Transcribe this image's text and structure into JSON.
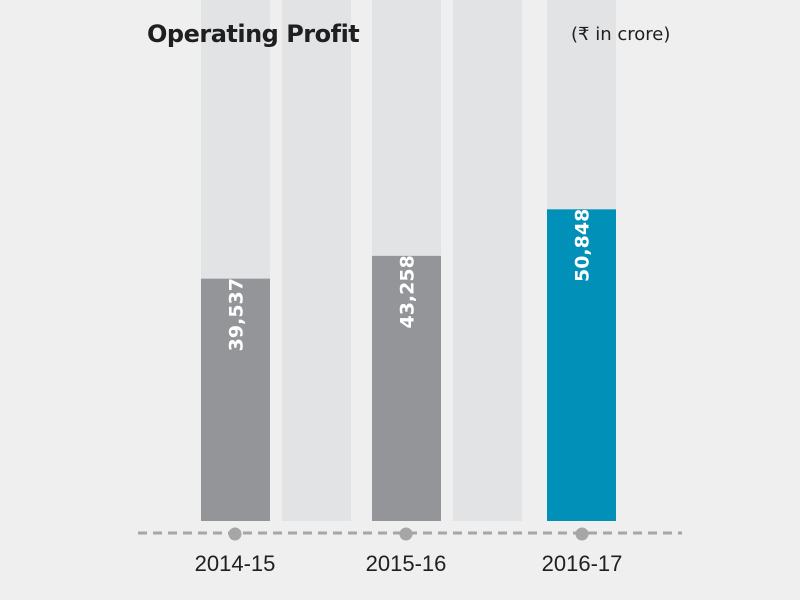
{
  "chart_data": {
    "type": "bar",
    "title": "Operating Profit",
    "subtitle": "(₹ in crore)",
    "categories": [
      "2014-15",
      "2015-16",
      "2016-17"
    ],
    "values": [
      39537,
      43258,
      50848
    ],
    "value_labels": [
      "39,537",
      "43,258",
      "50,848"
    ],
    "ylim": [
      0,
      85000
    ],
    "highlight_index": 2,
    "colors": {
      "bar": "#939598",
      "highlight_bar": "#0090b8",
      "track": "#e2e3e5",
      "axis": "#a6a6a6",
      "label_text": "#ffffff",
      "category_text": "#1f1f1f"
    }
  }
}
